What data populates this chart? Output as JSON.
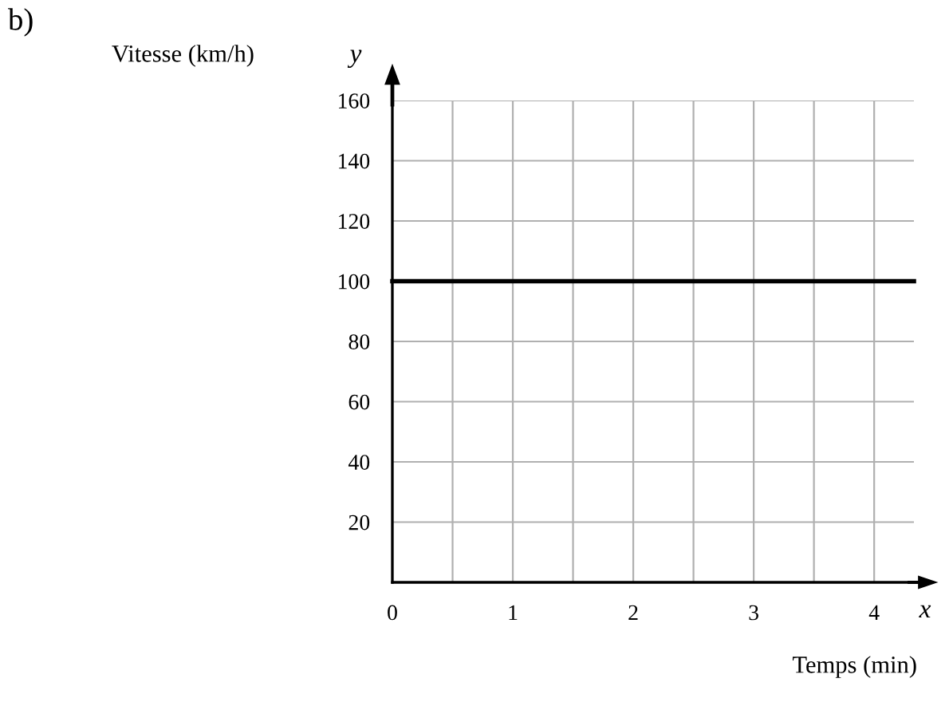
{
  "chart_data": {
    "type": "line",
    "title": "b)",
    "xlabel": "Temps (min)",
    "ylabel": "Vitesse (km/h)",
    "annotations": [
      "y",
      "x"
    ],
    "x": [
      0,
      4.33
    ],
    "series": [
      {
        "color": "#000000",
        "values": [
          100,
          100
        ]
      }
    ],
    "xlim": [
      0,
      4.33
    ],
    "ylim": [
      0,
      160
    ],
    "xticks": [
      0,
      {
        "value": 0.5,
        "label": null
      },
      1,
      {
        "value": 1.5,
        "label": null
      },
      2,
      {
        "value": 2.5,
        "label": null
      },
      3,
      {
        "value": 3.5,
        "label": null
      },
      4
    ],
    "yticks": [
      20,
      40,
      60,
      80,
      100,
      120,
      140,
      160
    ],
    "grid": true,
    "legend": false,
    "marker": "none",
    "line_style": "solid"
  }
}
